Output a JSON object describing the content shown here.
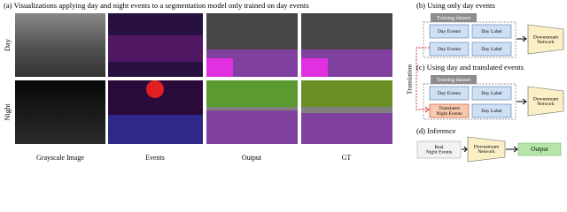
{
  "panel_a": {
    "title": "(a) Visualizations applying day and night events to a segmentation model only trained on day events",
    "rows": [
      "Day",
      "Night"
    ],
    "columns": [
      "Grayscale Image",
      "Events",
      "Output",
      "GT"
    ]
  },
  "panel_b": {
    "title": "(b) Using only day events",
    "dataset": "Training dataset",
    "cells": [
      [
        [
          "Day Events"
        ],
        [
          "Day Label"
        ]
      ],
      [
        [
          "Day Events"
        ],
        [
          "Day Label"
        ]
      ]
    ],
    "network": [
      "Downstream",
      "Network"
    ]
  },
  "translation": "Translation",
  "panel_c": {
    "title": "(c) Using day and translated events",
    "dataset": "Training dataset",
    "cells": [
      [
        [
          "Day Events"
        ],
        [
          "Day Label"
        ]
      ],
      [
        [
          "Translated",
          "Night Events"
        ],
        [
          "Day Label"
        ]
      ]
    ],
    "network": [
      "Downstream",
      "Network"
    ]
  },
  "panel_d": {
    "title": "(d) Inference",
    "input": [
      "Real",
      "Night Events"
    ],
    "network": [
      "Downstream",
      "Network"
    ],
    "output": "Output"
  }
}
